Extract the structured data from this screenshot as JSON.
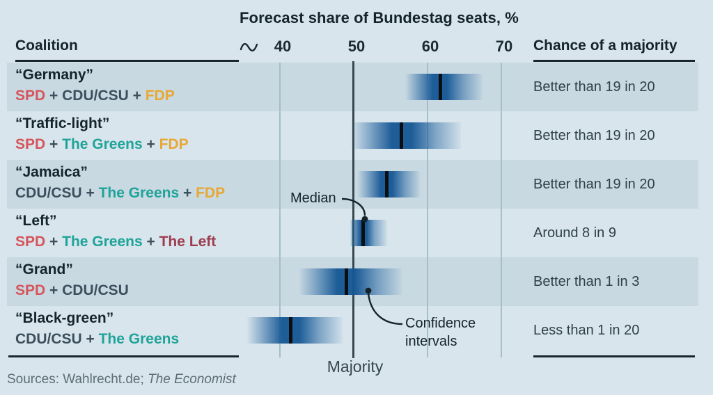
{
  "title": "Forecast share of Bundestag seats, %",
  "header": {
    "coalition": "Coalition",
    "chance": "Chance of a majority"
  },
  "annotations": {
    "median": "Median",
    "confidence_line1": "Confidence",
    "confidence_line2": "intervals",
    "majority": "Majority"
  },
  "source": {
    "prefix": "Sources: Wahlrecht.de; ",
    "publication": "The Economist"
  },
  "party_colors": {
    "SPD": "#d6555c",
    "CDU/CSU": "#3d4f5c",
    "The Greens": "#1fa399",
    "FDP": "#e9a733",
    "The Left": "#9e3c50"
  },
  "colors": {
    "background": "#d8e5ec",
    "row_band": "#c8d9e2",
    "bar_blue": "#2a6aa5",
    "bar_dark_blue": "#175a98",
    "median_line": "#0b0f12",
    "gridline": "#a7bdc8",
    "majority_line": "#37474f",
    "text_dark": "#15232c",
    "text_body": "#2f4049",
    "plus_sign": "#3d4f5c",
    "source_text": "#5d6c76"
  },
  "chart_data": {
    "type": "bar",
    "orientation": "horizontal-interval",
    "title": "Forecast share of Bundestag seats, %",
    "xlabel": "Forecast share of Bundestag seats, %",
    "ylabel": "",
    "xlim": [
      34,
      73
    ],
    "x_ticks": [
      40,
      50,
      60,
      70
    ],
    "majority_value": 50,
    "axis_break_before": 40,
    "grid": true,
    "legend_position": "none",
    "rows": [
      {
        "name": "“Germany”",
        "parties": [
          "SPD",
          "CDU/CSU",
          "FDP"
        ],
        "chance": "Better than 19 in 20",
        "low": 57.0,
        "median": 61.7,
        "high": 67.5
      },
      {
        "name": "“Traffic-light”",
        "parties": [
          "SPD",
          "The Greens",
          "FDP"
        ],
        "chance": "Better than 19 in 20",
        "low": 49.5,
        "median": 56.5,
        "high": 64.5
      },
      {
        "name": "“Jamaica”",
        "parties": [
          "CDU/CSU",
          "The Greens",
          "FDP"
        ],
        "chance": "Better than 19 in 20",
        "low": 50.5,
        "median": 54.5,
        "high": 59.0
      },
      {
        "name": "“Left”",
        "parties": [
          "SPD",
          "The Greens",
          "The Left"
        ],
        "chance": "Around 8 in 9",
        "low": 49.5,
        "median": 51.3,
        "high": 54.5
      },
      {
        "name": "“Grand”",
        "parties": [
          "SPD",
          "CDU/CSU"
        ],
        "chance": "Better than 1 in 3",
        "low": 42.5,
        "median": 49.0,
        "high": 56.5
      },
      {
        "name": "“Black-green”",
        "parties": [
          "CDU/CSU",
          "The Greens"
        ],
        "chance": "Less than 1 in 20",
        "low": 35.5,
        "median": 41.5,
        "high": 48.5
      }
    ]
  }
}
